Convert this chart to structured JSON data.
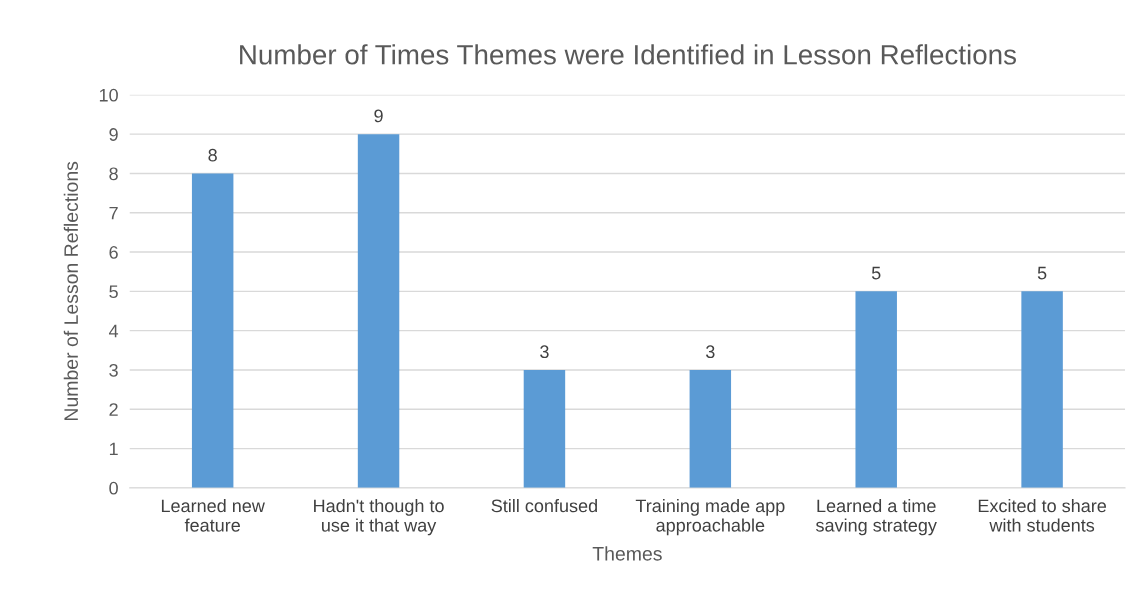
{
  "chart_data": {
    "type": "bar",
    "title": "Number of Times Themes were Identified in Lesson Reflections",
    "xlabel": "Themes",
    "ylabel": "Number of Lesson Reflections",
    "categories": [
      "Learned new\nfeature",
      "Hadn't though to\nuse it that way",
      "Still confused",
      "Training made app\napproachable",
      "Learned a time\nsaving strategy",
      "Excited to share\nwith students"
    ],
    "values": [
      8,
      9,
      3,
      3,
      5,
      5
    ],
    "color": "#5b9bd5",
    "ylim": [
      0,
      10
    ],
    "yticks": [
      0,
      1,
      2,
      3,
      4,
      5,
      6,
      7,
      8,
      9,
      10
    ],
    "grid": "y",
    "data_labels": true
  }
}
